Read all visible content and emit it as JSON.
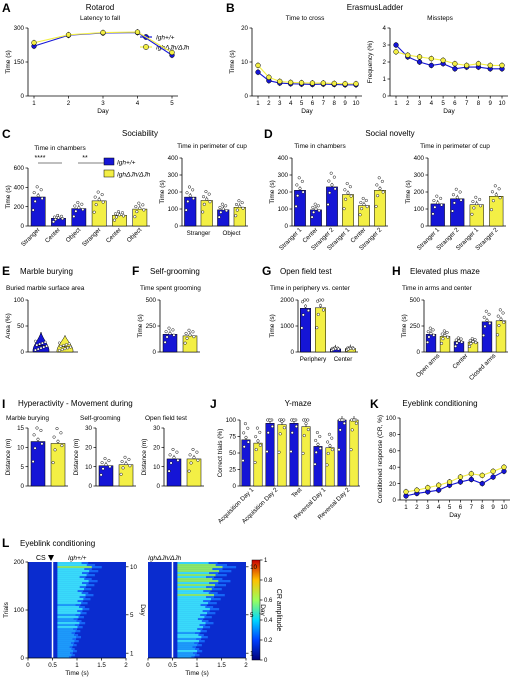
{
  "colors": {
    "ctrl": "#1515d6",
    "mut": "#f3ef45",
    "edge": "#000000"
  },
  "legend": {
    "ctrl": "Igh+/+",
    "mut": "IghΔJh/ΔJh"
  },
  "panels": [
    {
      "letter": "A",
      "title": "Rotarod",
      "subtitle": "Latency to fall",
      "ylabel": "Time (s)",
      "xlabel": "Day"
    },
    {
      "letter": "B",
      "title": "ErasmusLadder",
      "left_subtitle": "Time to cross",
      "right_subtitle": "Missteps",
      "left_ylabel": "Time (s)",
      "right_ylabel": "Frequency (%)",
      "xlabel": "Day"
    },
    {
      "letter": "C",
      "title": "Sociability",
      "left_subtitle": "Time in chambers",
      "right_subtitle": "Time in perimeter of cup",
      "ylabel": "Time (s)",
      "sig1": "****",
      "sig2": "**"
    },
    {
      "letter": "D",
      "title": "Social novelty",
      "left_subtitle": "Time in chambers",
      "right_subtitle": "Time in perimeter of cup",
      "ylabel": "Time (s)"
    },
    {
      "letter": "E",
      "title": "Marble burying",
      "subtitle": "Buried marble surface area",
      "ylabel": "Area (%)"
    },
    {
      "letter": "F",
      "title": "Self-grooming",
      "subtitle": "Time spent grooming",
      "ylabel": "Time (s)"
    },
    {
      "letter": "G",
      "title": "Open field test",
      "subtitle": "Time in periphery vs. center",
      "ylabel": "Time (s)"
    },
    {
      "letter": "H",
      "title": "Elevated plus maze",
      "subtitle": "Time in arms and center",
      "ylabel": "Time (s)"
    },
    {
      "letter": "I",
      "title": "Hyperactivity - Movement during",
      "sub1": "Marble burying",
      "sub2": "Self-grooming",
      "sub3": "Open field test",
      "ylabel": "Distance (m)"
    },
    {
      "letter": "J",
      "title": "Y-maze",
      "ylabel": "Correct trials (%)"
    },
    {
      "letter": "K",
      "title": "Eyeblink conditioning",
      "ylabel": "Conditioned response (CR, %)",
      "xlabel": "Day"
    },
    {
      "letter": "L",
      "title": "Eyeblink conditioning",
      "cs": "CS",
      "left_label": "Igh+/+",
      "right_label": "IghΔJh/ΔJh",
      "ylabel": "Trials",
      "xlabel": "Time (s)",
      "day_label": "Day",
      "cbar_label": "CR amplitude"
    }
  ],
  "chart_data": [
    {
      "id": "A",
      "type": "line",
      "x": [
        1,
        2,
        3,
        4,
        5
      ],
      "series": [
        {
          "name": "Igh+/+",
          "values": [
            220,
            268,
            278,
            280,
            180
          ]
        },
        {
          "name": "IghΔJh/ΔJh",
          "values": [
            235,
            270,
            280,
            282,
            192
          ]
        }
      ],
      "ylim": [
        0,
        300
      ],
      "yticks": [
        0,
        150,
        300
      ],
      "xticks": [
        1,
        2,
        3,
        4,
        5
      ]
    },
    {
      "id": "B-time",
      "type": "line",
      "x": [
        1,
        2,
        3,
        4,
        5,
        6,
        7,
        8,
        9,
        10
      ],
      "series": [
        {
          "name": "Igh+/+",
          "values": [
            7,
            4.5,
            3.8,
            3.6,
            3.5,
            3.4,
            3.5,
            3.4,
            3.3,
            3.3
          ]
        },
        {
          "name": "IghΔJh/ΔJh",
          "values": [
            9,
            5.5,
            4.3,
            4,
            3.9,
            3.8,
            3.8,
            3.7,
            3.6,
            3.6
          ]
        }
      ],
      "ylim": [
        0,
        20
      ],
      "yticks": [
        0,
        10,
        20
      ],
      "xticks": [
        1,
        2,
        3,
        4,
        5,
        6,
        7,
        8,
        9,
        10
      ]
    },
    {
      "id": "B-missteps",
      "type": "line",
      "x": [
        1,
        2,
        3,
        4,
        5,
        6,
        7,
        8,
        9,
        10
      ],
      "series": [
        {
          "name": "Igh+/+",
          "values": [
            3,
            2.3,
            2,
            1.8,
            1.9,
            1.6,
            1.7,
            1.7,
            1.6,
            1.6
          ]
        },
        {
          "name": "IghΔJh/ΔJh",
          "values": [
            2.6,
            2.4,
            2.3,
            2.2,
            2.1,
            1.9,
            1.8,
            1.9,
            1.8,
            1.8
          ]
        }
      ],
      "ylim": [
        0,
        4
      ],
      "yticks": [
        0,
        1,
        2,
        3,
        4
      ],
      "xticks": [
        1,
        2,
        3,
        4,
        5,
        6,
        7,
        8,
        9,
        10
      ]
    },
    {
      "id": "C-chambers",
      "type": "bar",
      "categories": [
        "Stranger",
        "Center",
        "Object",
        "Stranger",
        "Center",
        "Object"
      ],
      "values": [
        300,
        80,
        180,
        260,
        110,
        175
      ],
      "ylim": [
        0,
        600
      ],
      "yticks": [
        0,
        200,
        400,
        600
      ]
    },
    {
      "id": "C-cup",
      "type": "bar",
      "categories": [
        "Stranger",
        "Object"
      ],
      "values": [
        [
          170,
          150
        ],
        [
          95,
          110
        ]
      ],
      "ylim": [
        0,
        400
      ],
      "yticks": [
        0,
        100,
        200,
        300,
        400
      ]
    },
    {
      "id": "D-chambers",
      "type": "bar",
      "categories": [
        "Stranger 1",
        "Center",
        "Stranger 2",
        "Stranger 1",
        "Center",
        "Stranger 2"
      ],
      "values": [
        210,
        95,
        230,
        185,
        120,
        210
      ],
      "ylim": [
        0,
        400
      ],
      "yticks": [
        0,
        100,
        200,
        300,
        400
      ]
    },
    {
      "id": "D-cup",
      "type": "bar",
      "categories": [
        "Stranger 1",
        "Stranger 2",
        "Stranger 1",
        "Stranger 2"
      ],
      "values": [
        130,
        160,
        125,
        175
      ],
      "ylim": [
        0,
        400
      ],
      "yticks": [
        0,
        100,
        200,
        300,
        400
      ]
    },
    {
      "id": "E",
      "type": "violin",
      "ylim": [
        0,
        100
      ],
      "yticks": [
        0,
        50,
        100
      ],
      "values": [
        12,
        10
      ]
    },
    {
      "id": "F",
      "type": "bar",
      "values": [
        170,
        155
      ],
      "ylim": [
        0,
        500
      ],
      "yticks": [
        0,
        250,
        500
      ]
    },
    {
      "id": "G",
      "type": "bar",
      "categories": [
        "Periphery",
        "Center"
      ],
      "values": [
        [
          1680,
          1700
        ],
        [
          120,
          130
        ]
      ],
      "ylim": [
        0,
        2000
      ],
      "yticks": [
        0,
        1000,
        2000
      ]
    },
    {
      "id": "H",
      "type": "bar",
      "categories": [
        "Open arms",
        "Center",
        "Closed arms"
      ],
      "values": [
        [
          170,
          150
        ],
        [
          100,
          95
        ],
        [
          290,
          300
        ]
      ],
      "ylim": [
        0,
        500
      ],
      "yticks": [
        0,
        250,
        500
      ]
    },
    {
      "id": "I-marble",
      "type": "bar",
      "values": [
        11.5,
        11
      ],
      "ylim": [
        0,
        15
      ],
      "yticks": [
        0,
        5,
        10,
        15
      ]
    },
    {
      "id": "I-groom",
      "type": "bar",
      "values": [
        10.5,
        11
      ],
      "ylim": [
        0,
        30
      ],
      "yticks": [
        0,
        10,
        20,
        30
      ]
    },
    {
      "id": "I-open",
      "type": "bar",
      "values": [
        14,
        14
      ],
      "ylim": [
        0,
        30
      ],
      "yticks": [
        0,
        10,
        20,
        30
      ]
    },
    {
      "id": "J",
      "type": "bar",
      "categories": [
        "Acquisition Day 1",
        "Acquisition Day 2",
        "Test",
        "Reversal Day 1",
        "Reversal Day 2"
      ],
      "values": [
        [
          70,
          65
        ],
        [
          95,
          93
        ],
        [
          95,
          90
        ],
        [
          60,
          58
        ],
        [
          100,
          100
        ]
      ],
      "ylim": [
        0,
        100
      ],
      "yticks": [
        0,
        25,
        50,
        75,
        100
      ]
    },
    {
      "id": "K",
      "type": "line",
      "x": [
        1,
        2,
        3,
        4,
        5,
        6,
        7,
        8,
        9,
        10
      ],
      "series": [
        {
          "name": "Igh+/+",
          "values": [
            5,
            8,
            10,
            12,
            18,
            22,
            25,
            20,
            28,
            35
          ]
        },
        {
          "name": "IghΔJh/ΔJh",
          "values": [
            10,
            12,
            15,
            18,
            22,
            28,
            32,
            30,
            35,
            40
          ]
        }
      ],
      "ylim": [
        0,
        100
      ],
      "yticks": [
        0,
        20,
        40,
        60,
        80,
        100
      ],
      "xticks": [
        1,
        2,
        3,
        4,
        5,
        6,
        7,
        8,
        9,
        10
      ]
    },
    {
      "id": "L",
      "type": "heatmap",
      "xlim": [
        0,
        2
      ],
      "xticks": [
        0,
        0.5,
        1,
        1.5,
        2
      ],
      "ylim": [
        0,
        200
      ],
      "yticks": [
        0,
        100,
        200
      ],
      "day_ticks": [
        1,
        5,
        10
      ],
      "cs_time": 0.5,
      "cbar": [
        0,
        0.2,
        0.4,
        0.6,
        0.8,
        1
      ]
    }
  ]
}
